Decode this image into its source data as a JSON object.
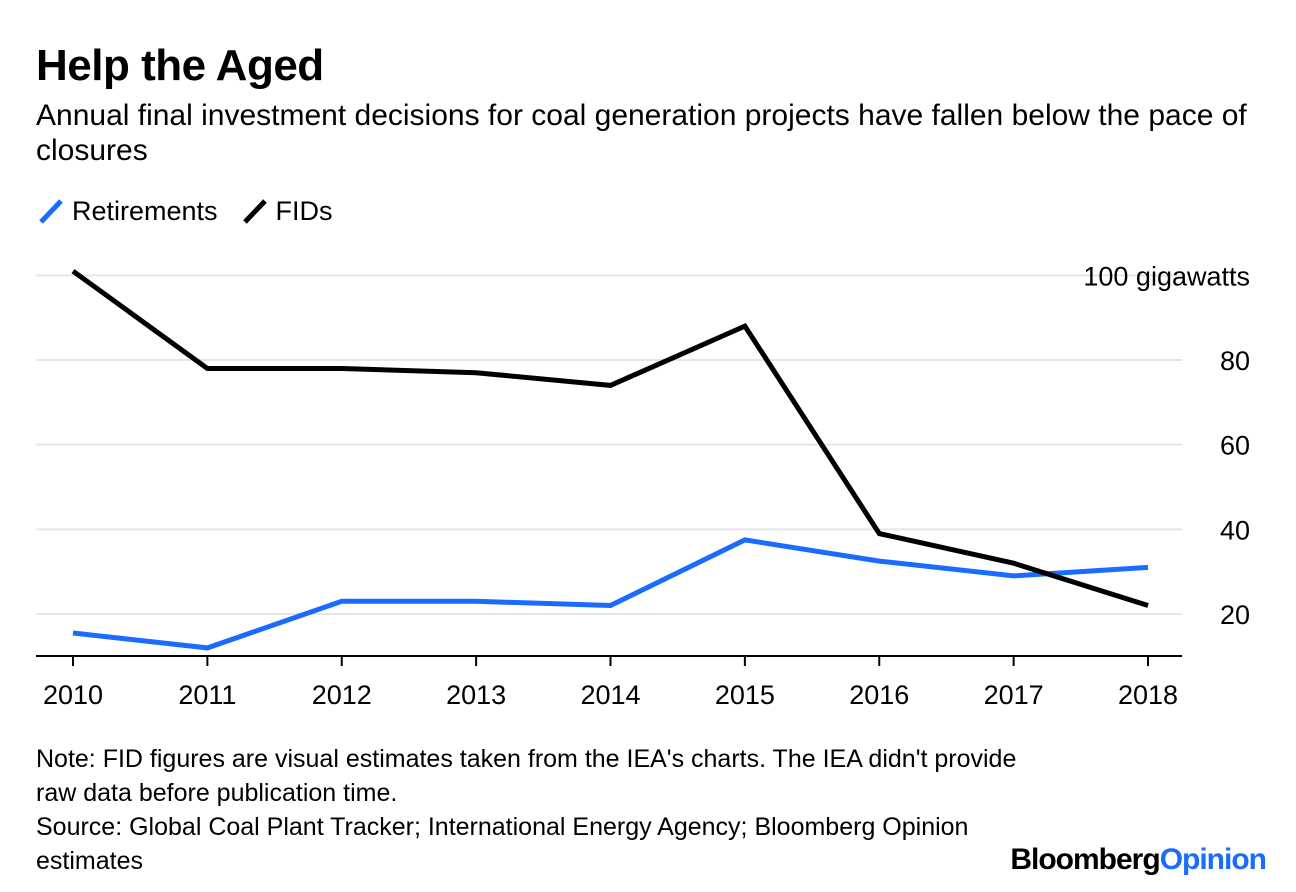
{
  "chart_data": {
    "type": "line",
    "title": "Help the Aged",
    "subtitle": "Annual final investment decisions for coal generation projects have fallen below the pace of closures",
    "x": [
      "2010",
      "2011",
      "2012",
      "2013",
      "2014",
      "2015",
      "2016",
      "2017",
      "2018"
    ],
    "series": [
      {
        "name": "Retirements",
        "color": "#1a6cff",
        "values": [
          15.5,
          12,
          23,
          23,
          22,
          37.5,
          32.5,
          29,
          31
        ]
      },
      {
        "name": "FIDs",
        "color": "#000000",
        "values": [
          101,
          78,
          78,
          77,
          74,
          88,
          39,
          32,
          22
        ]
      }
    ],
    "y_ticks": [
      20,
      40,
      60,
      80,
      100
    ],
    "y_tick_labels": [
      "20",
      "40",
      "60",
      "80",
      "100 gigawatts"
    ],
    "ylim": [
      10,
      102
    ],
    "xlabel": "",
    "ylabel": "gigawatts",
    "legend_position": "top-left",
    "grid": true
  },
  "note": "Note: FID figures are visual estimates taken from the IEA's charts. The IEA didn't provide raw data before publication time.",
  "source": "Source: Global Coal Plant Tracker; International Energy Agency; Bloomberg Opinion estimates",
  "brand": {
    "part1": "Bloomberg",
    "part2": "Opinion",
    "accent": "#1a6cff"
  }
}
